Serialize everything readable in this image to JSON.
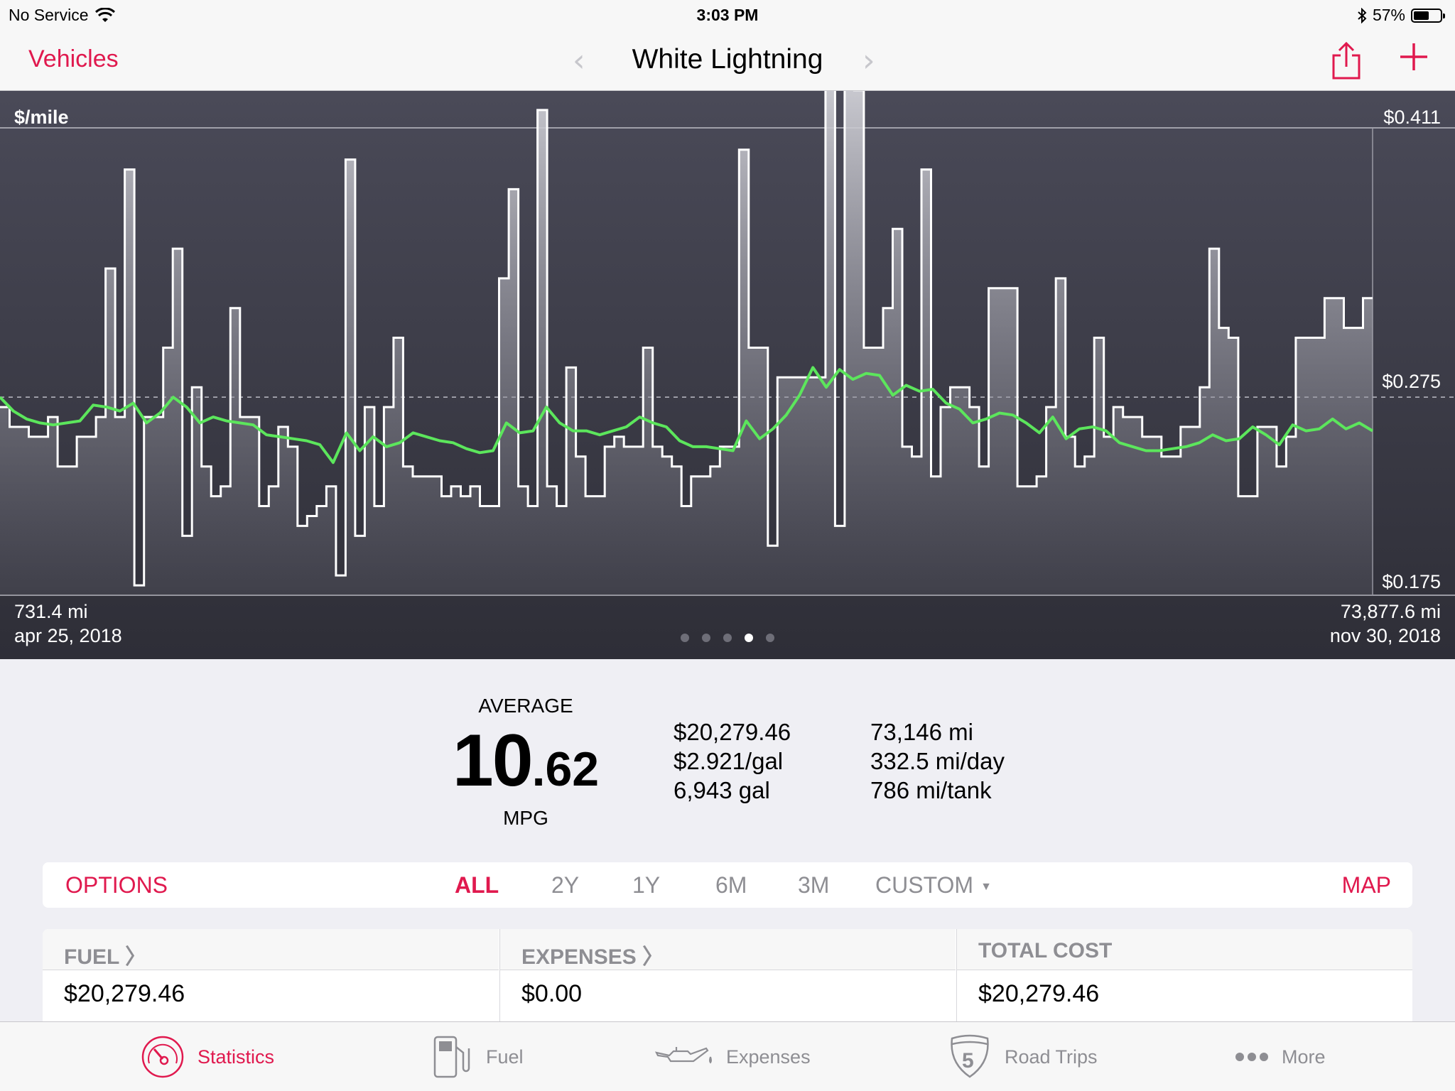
{
  "status": {
    "carrier": "No Service",
    "time": "3:03 PM",
    "battery": "57%",
    "battery_level": 0.57
  },
  "nav": {
    "back_label": "Vehicles",
    "title": "White Lightning"
  },
  "chart_data": {
    "type": "line",
    "ylabel": "$/mile",
    "y_ticks": [
      "$0.411",
      "$0.275",
      "$0.175"
    ],
    "ylim": [
      0.175,
      0.411
    ],
    "reference_value": 0.275,
    "x_start": {
      "distance": "731.4 mi",
      "date": "apr 25, 2018"
    },
    "x_end": {
      "distance": "73,877.6 mi",
      "date": "nov 30, 2018"
    },
    "series": [
      {
        "style": "step-bars",
        "color": "#ffffff",
        "values": [
          0.27,
          0.26,
          0.26,
          0.255,
          0.255,
          0.265,
          0.24,
          0.24,
          0.255,
          0.255,
          0.265,
          0.34,
          0.265,
          0.39,
          0.18,
          0.265,
          0.265,
          0.3,
          0.35,
          0.205,
          0.28,
          0.24,
          0.225,
          0.23,
          0.32,
          0.265,
          0.265,
          0.22,
          0.23,
          0.26,
          0.25,
          0.21,
          0.215,
          0.22,
          0.23,
          0.185,
          0.395,
          0.205,
          0.27,
          0.22,
          0.27,
          0.305,
          0.24,
          0.235,
          0.235,
          0.235,
          0.225,
          0.23,
          0.225,
          0.23,
          0.22,
          0.22,
          0.335,
          0.38,
          0.23,
          0.22,
          0.42,
          0.23,
          0.22,
          0.29,
          0.245,
          0.225,
          0.225,
          0.25,
          0.255,
          0.25,
          0.25,
          0.3,
          0.25,
          0.245,
          0.24,
          0.22,
          0.235,
          0.235,
          0.24,
          0.25,
          0.25,
          0.4,
          0.3,
          0.3,
          0.2,
          0.285,
          0.285,
          0.285,
          0.285,
          0.285,
          0.44,
          0.21,
          0.44,
          0.43,
          0.3,
          0.3,
          0.32,
          0.36,
          0.25,
          0.245,
          0.39,
          0.235,
          0.27,
          0.28,
          0.28,
          0.27,
          0.24,
          0.33,
          0.33,
          0.33,
          0.23,
          0.23,
          0.235,
          0.27,
          0.335,
          0.255,
          0.24,
          0.245,
          0.305,
          0.255,
          0.27,
          0.265,
          0.265,
          0.255,
          0.255,
          0.245,
          0.245,
          0.26,
          0.26,
          0.28,
          0.35,
          0.31,
          0.305,
          0.225,
          0.225,
          0.26,
          0.26,
          0.24,
          0.255,
          0.305,
          0.305,
          0.305,
          0.325,
          0.325,
          0.31,
          0.31,
          0.325
        ]
      },
      {
        "style": "moving-average",
        "color": "#5ce65c",
        "values": [
          0.275,
          0.268,
          0.264,
          0.262,
          0.261,
          0.262,
          0.263,
          0.271,
          0.27,
          0.268,
          0.272,
          0.262,
          0.267,
          0.275,
          0.27,
          0.262,
          0.265,
          0.263,
          0.262,
          0.261,
          0.256,
          0.255,
          0.254,
          0.253,
          0.251,
          0.242,
          0.257,
          0.248,
          0.255,
          0.25,
          0.252,
          0.257,
          0.255,
          0.253,
          0.252,
          0.249,
          0.247,
          0.248,
          0.262,
          0.257,
          0.258,
          0.27,
          0.262,
          0.258,
          0.258,
          0.256,
          0.258,
          0.26,
          0.265,
          0.262,
          0.26,
          0.253,
          0.25,
          0.25,
          0.249,
          0.248,
          0.263,
          0.254,
          0.259,
          0.266,
          0.276,
          0.29,
          0.28,
          0.289,
          0.284,
          0.287,
          0.286,
          0.276,
          0.281,
          0.278,
          0.279,
          0.272,
          0.269,
          0.262,
          0.264,
          0.267,
          0.266,
          0.262,
          0.257,
          0.265,
          0.254,
          0.259,
          0.26,
          0.258,
          0.252,
          0.25,
          0.248,
          0.248,
          0.249,
          0.25,
          0.252,
          0.256,
          0.253,
          0.254,
          0.26,
          0.256,
          0.251,
          0.261,
          0.258,
          0.259,
          0.264,
          0.259,
          0.262,
          0.258
        ]
      }
    ]
  },
  "pager": {
    "count": 5,
    "active_index": 3
  },
  "average": {
    "label": "AVERAGE",
    "value_int": "10",
    "value_dec": ".62",
    "unit": "MPG"
  },
  "stats_money": [
    "$20,279.46",
    "$2.921/gal",
    "6,943 gal"
  ],
  "stats_distance": [
    "73,146 mi",
    "332.5 mi/day",
    "786 mi/tank"
  ],
  "range": {
    "options_label": "OPTIONS",
    "items": [
      "ALL",
      "2Y",
      "1Y",
      "6M",
      "3M"
    ],
    "active": "ALL",
    "custom_label": "CUSTOM",
    "map_label": "MAP"
  },
  "costs": [
    {
      "header": "FUEL",
      "value": "$20,279.46",
      "chevron": true
    },
    {
      "header": "EXPENSES",
      "value": "$0.00",
      "chevron": true
    },
    {
      "header": "TOTAL COST",
      "value": "$20,279.46",
      "chevron": false
    }
  ],
  "tabs": [
    {
      "label": "Statistics",
      "icon": "speedometer-icon",
      "active": true
    },
    {
      "label": "Fuel",
      "icon": "fuel-pump-icon",
      "active": false
    },
    {
      "label": "Expenses",
      "icon": "oil-can-icon",
      "active": false
    },
    {
      "label": "Road Trips",
      "icon": "highway-shield-icon",
      "shield_number": "5",
      "active": false
    },
    {
      "label": "More",
      "icon": "more-dots-icon",
      "active": false
    }
  ],
  "colors": {
    "accent": "#e0194e",
    "chart_line": "#5ce65c",
    "chart_bg": "#3a3a46"
  }
}
